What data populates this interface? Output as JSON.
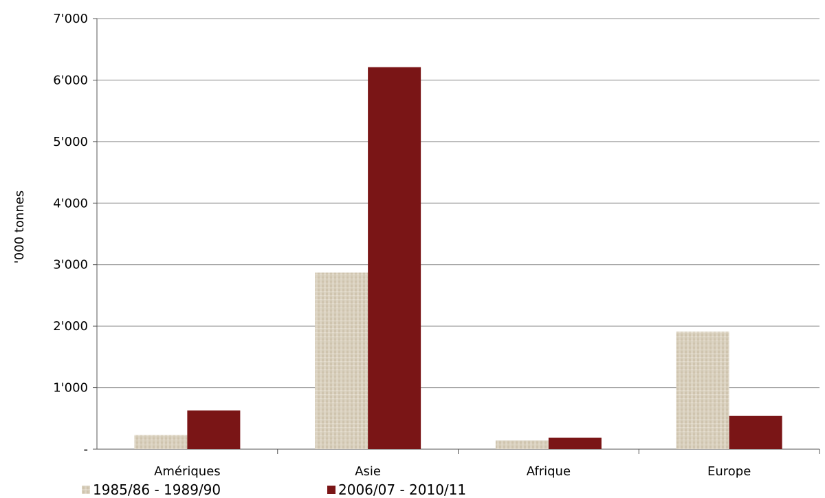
{
  "chart_data": {
    "type": "bar",
    "title": "",
    "xlabel": "",
    "ylabel": "'000 tonnes",
    "ylim": [
      0,
      7000
    ],
    "yticks": [
      0,
      1000,
      2000,
      3000,
      4000,
      5000,
      6000,
      7000
    ],
    "ytick_labels": [
      "-",
      "1'000",
      "2'000",
      "3'000",
      "4'000",
      "5'000",
      "6'000",
      "7'000"
    ],
    "categories": [
      "Amériques",
      "Asie",
      "Afrique",
      "Europe"
    ],
    "series": [
      {
        "name": "1985/86 - 1989/90",
        "values": [
          230,
          2870,
          140,
          1910
        ],
        "color": "#d8cfbd",
        "pattern": "textured-beige"
      },
      {
        "name": "2006/07 - 2010/11",
        "values": [
          630,
          6210,
          185,
          540
        ],
        "color": "#7a1516"
      }
    ],
    "grid": true,
    "legend_position": "bottom-left"
  }
}
